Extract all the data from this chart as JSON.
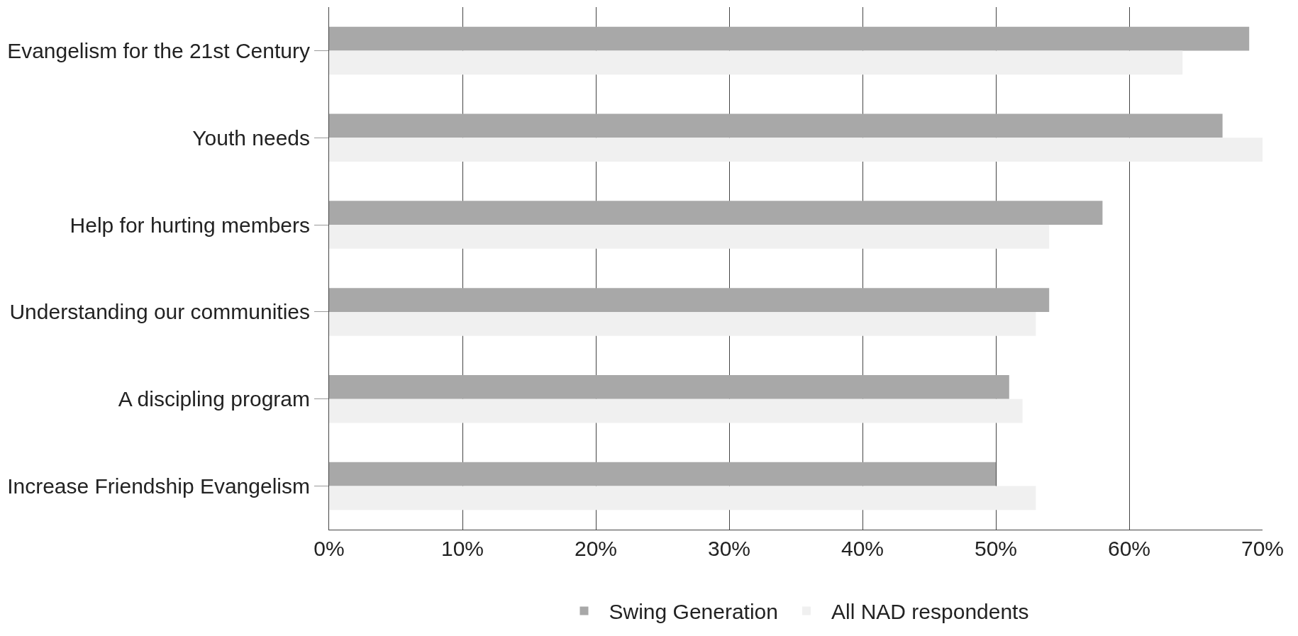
{
  "chart_data": {
    "type": "bar",
    "orientation": "horizontal",
    "categories": [
      "Evangelism for the 21st Century",
      "Youth needs",
      "Help for hurting members",
      "Understanding our communities",
      "A discipling program",
      "Increase Friendship Evangelism"
    ],
    "series": [
      {
        "name": "Swing Generation",
        "color": "#a8a8a8",
        "values": [
          69,
          67,
          58,
          54,
          51,
          50
        ]
      },
      {
        "name": "All NAD respondents",
        "color": "#f0f0f0",
        "values": [
          64,
          70,
          54,
          53,
          52,
          53
        ]
      }
    ],
    "xlim": [
      0,
      70
    ],
    "xticks": [
      {
        "value": 0,
        "label": "0%"
      },
      {
        "value": 10,
        "label": "10%"
      },
      {
        "value": 20,
        "label": "20%"
      },
      {
        "value": 30,
        "label": "30%"
      },
      {
        "value": 40,
        "label": "40%"
      },
      {
        "value": 50,
        "label": "50%"
      },
      {
        "value": 60,
        "label": "60%"
      },
      {
        "value": 70,
        "label": "70%"
      }
    ],
    "grid": "x",
    "legend": "bottom"
  }
}
